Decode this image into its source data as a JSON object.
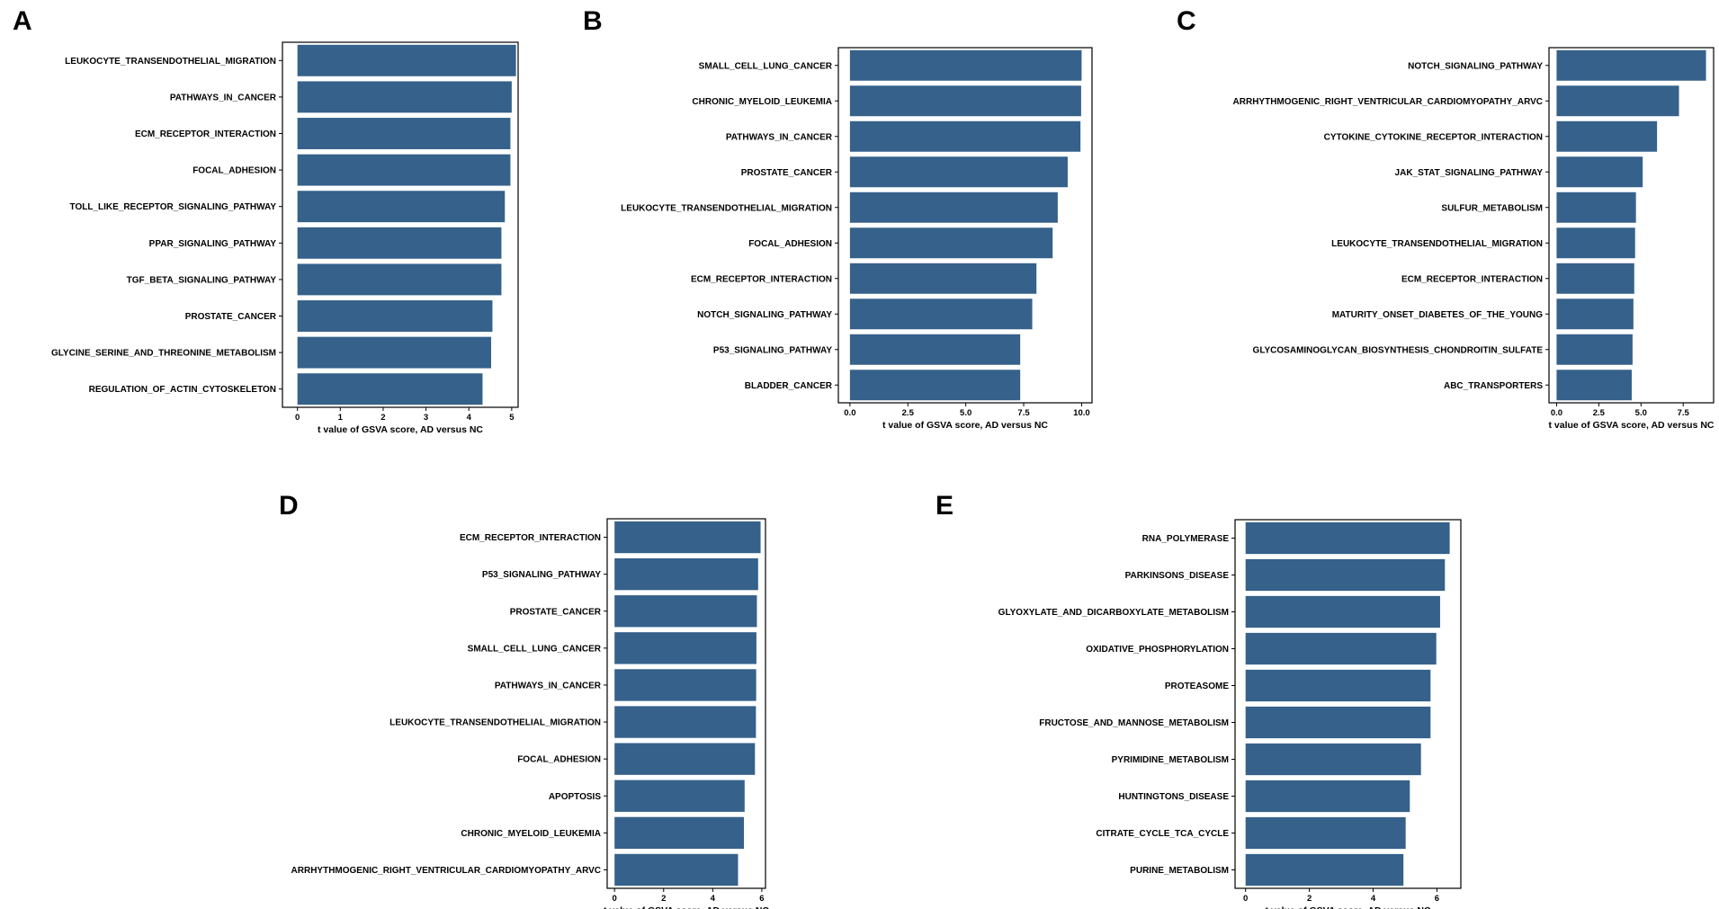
{
  "colors": {
    "bar": "#35618a",
    "frame": "#000000",
    "text": "#000000"
  },
  "chart_data": [
    {
      "panel": "A",
      "type": "bar",
      "orientation": "horizontal",
      "xlabel": "t value of GSVA score, AD versus NC",
      "xlim": [
        -0.35,
        5.15
      ],
      "ticks": [
        0,
        1,
        2,
        3,
        4,
        5
      ],
      "tick_labels": [
        "0",
        "1",
        "2",
        "3",
        "4",
        "5"
      ],
      "categories": [
        "LEUKOCYTE_TRANSENDOTHELIAL_MIGRATION",
        "PATHWAYS_IN_CANCER",
        "ECM_RECEPTOR_INTERACTION",
        "FOCAL_ADHESION",
        "TOLL_LIKE_RECEPTOR_SIGNALING_PATHWAY",
        "PPAR_SIGNALING_PATHWAY",
        "TGF_BETA_SIGNALING_PATHWAY",
        "PROSTATE_CANCER",
        "GLYCINE_SERINE_AND_THREONINE_METABOLISM",
        "REGULATION_OF_ACTIN_CYTOSKELETON"
      ],
      "values": [
        5.1,
        5.0,
        4.97,
        4.97,
        4.84,
        4.76,
        4.76,
        4.55,
        4.52,
        4.32
      ]
    },
    {
      "panel": "B",
      "type": "bar",
      "orientation": "horizontal",
      "xlabel": "t value of GSVA score, AD versus NC",
      "xlim": [
        -0.5,
        10.45
      ],
      "ticks": [
        0,
        2.5,
        5,
        7.5,
        10
      ],
      "tick_labels": [
        "0.0",
        "2.5",
        "5.0",
        "7.5",
        "10.0"
      ],
      "categories": [
        "SMALL_CELL_LUNG_CANCER",
        "CHRONIC_MYELOID_LEUKEMIA",
        "PATHWAYS_IN_CANCER",
        "PROSTATE_CANCER",
        "LEUKOCYTE_TRANSENDOTHELIAL_MIGRATION",
        "FOCAL_ADHESION",
        "ECM_RECEPTOR_INTERACTION",
        "NOTCH_SIGNALING_PATHWAY",
        "P53_SIGNALING_PATHWAY",
        "BLADDER_CANCER"
      ],
      "values": [
        10.0,
        9.98,
        9.95,
        9.4,
        8.97,
        8.75,
        8.05,
        7.87,
        7.35,
        7.35
      ]
    },
    {
      "panel": "C",
      "type": "bar",
      "orientation": "horizontal",
      "xlabel": "t value of GSVA score, AD versus NC",
      "xlim": [
        -0.45,
        9.3
      ],
      "ticks": [
        0,
        2.5,
        5,
        7.5
      ],
      "tick_labels": [
        "0.0",
        "2.5",
        "5.0",
        "7.5"
      ],
      "categories": [
        "NOTCH_SIGNALING_PATHWAY",
        "ARRHYTHMOGENIC_RIGHT_VENTRICULAR_CARDIOMYOPATHY_ARVC",
        "CYTOKINE_CYTOKINE_RECEPTOR_INTERACTION",
        "JAK_STAT_SIGNALING_PATHWAY",
        "SULFUR_METABOLISM",
        "LEUKOCYTE_TRANSENDOTHELIAL_MIGRATION",
        "ECM_RECEPTOR_INTERACTION",
        "MATURITY_ONSET_DIABETES_OF_THE_YOUNG",
        "GLYCOSAMINOGLYCAN_BIOSYNTHESIS_CHONDROITIN_SULFATE",
        "ABC_TRANSPORTERS"
      ],
      "values": [
        8.85,
        7.25,
        5.95,
        5.1,
        4.7,
        4.65,
        4.6,
        4.55,
        4.5,
        4.45
      ]
    },
    {
      "panel": "D",
      "type": "bar",
      "orientation": "horizontal",
      "xlabel": "t value of GSVA score, AD versus NC",
      "xlim": [
        -0.3,
        6.15
      ],
      "ticks": [
        0,
        2,
        4,
        6
      ],
      "tick_labels": [
        "0",
        "2",
        "4",
        "6"
      ],
      "categories": [
        "ECM_RECEPTOR_INTERACTION",
        "P53_SIGNALING_PATHWAY",
        "PROSTATE_CANCER",
        "SMALL_CELL_LUNG_CANCER",
        "PATHWAYS_IN_CANCER",
        "LEUKOCYTE_TRANSENDOTHELIAL_MIGRATION",
        "FOCAL_ADHESION",
        "APOPTOSIS",
        "CHRONIC_MYELOID_LEUKEMIA",
        "ARRHYTHMOGENIC_RIGHT_VENTRICULAR_CARDIOMYOPATHY_ARVC"
      ],
      "values": [
        5.95,
        5.85,
        5.8,
        5.78,
        5.77,
        5.76,
        5.72,
        5.3,
        5.27,
        5.03
      ]
    },
    {
      "panel": "E",
      "type": "bar",
      "orientation": "horizontal",
      "xlabel": "t value of GSVA score, AD versus NC",
      "xlim": [
        -0.33,
        6.75
      ],
      "ticks": [
        0,
        2,
        4,
        6
      ],
      "tick_labels": [
        "0",
        "2",
        "4",
        "6"
      ],
      "categories": [
        "RNA_POLYMERASE",
        "PARKINSONS_DISEASE",
        "GLYOXYLATE_AND_DICARBOXYLATE_METABOLISM",
        "OXIDATIVE_PHOSPHORYLATION",
        "PROTEASOME",
        "FRUCTOSE_AND_MANNOSE_METABOLISM",
        "PYRIMIDINE_METABOLISM",
        "HUNTINGTONS_DISEASE",
        "CITRATE_CYCLE_TCA_CYCLE",
        "PURINE_METABOLISM"
      ],
      "values": [
        6.4,
        6.25,
        6.1,
        5.98,
        5.8,
        5.8,
        5.5,
        5.15,
        5.02,
        4.95
      ]
    }
  ]
}
